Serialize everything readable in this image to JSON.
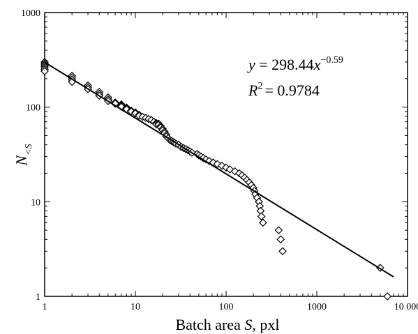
{
  "chart_data": {
    "type": "scatter",
    "title": "",
    "xlabel": {
      "prefix": "Batch area ",
      "var": "S",
      "suffix": ", pxl"
    },
    "ylabel": {
      "var": "N",
      "sub": "<S"
    },
    "x_scale": "log",
    "y_scale": "log",
    "xlim": [
      1,
      10000
    ],
    "ylim": [
      1,
      1000
    ],
    "x_ticks": [
      1,
      10,
      100,
      1000,
      10000
    ],
    "x_tick_labels": [
      "1",
      "10",
      "100",
      "1000",
      "10 000"
    ],
    "y_ticks": [
      1,
      10,
      100,
      1000
    ],
    "y_tick_labels": [
      "1",
      "10",
      "100",
      "1000"
    ],
    "grid": false,
    "marker": "open-diamond",
    "series": [
      {
        "points": [
          [
            1,
            300
          ],
          [
            1,
            290
          ],
          [
            1,
            280
          ],
          [
            1,
            270
          ],
          [
            1,
            260
          ],
          [
            1,
            250
          ],
          [
            1,
            240
          ],
          [
            2,
            215
          ],
          [
            2,
            205
          ],
          [
            2,
            195
          ],
          [
            2,
            185
          ],
          [
            3,
            170
          ],
          [
            3,
            162
          ],
          [
            3,
            155
          ],
          [
            4,
            145
          ],
          [
            4,
            138
          ],
          [
            4,
            132
          ],
          [
            5,
            127
          ],
          [
            5,
            121
          ],
          [
            5,
            116
          ],
          [
            6,
            112
          ],
          [
            6,
            109
          ],
          [
            7,
            107
          ],
          [
            7,
            104
          ],
          [
            7,
            101
          ],
          [
            8,
            99
          ],
          [
            8,
            97
          ],
          [
            8,
            95
          ],
          [
            9,
            92
          ],
          [
            9,
            90
          ],
          [
            10,
            88
          ],
          [
            10,
            86
          ],
          [
            11,
            83
          ],
          [
            11,
            81
          ],
          [
            12,
            79
          ],
          [
            13,
            77
          ],
          [
            14,
            75
          ],
          [
            15,
            73
          ],
          [
            16,
            70
          ],
          [
            17,
            68
          ],
          [
            17,
            66
          ],
          [
            18,
            67
          ],
          [
            18,
            65
          ],
          [
            19,
            63
          ],
          [
            19,
            61
          ],
          [
            20,
            59
          ],
          [
            20,
            57
          ],
          [
            21,
            55
          ],
          [
            21,
            53
          ],
          [
            22,
            51
          ],
          [
            22,
            49
          ],
          [
            23,
            47
          ],
          [
            24,
            45
          ],
          [
            25,
            44
          ],
          [
            26,
            43
          ],
          [
            27,
            42
          ],
          [
            28,
            41
          ],
          [
            30,
            40
          ],
          [
            32,
            38
          ],
          [
            34,
            37
          ],
          [
            36,
            36
          ],
          [
            38,
            35
          ],
          [
            40,
            34
          ],
          [
            42,
            33
          ],
          [
            48,
            32
          ],
          [
            50,
            31
          ],
          [
            53,
            30
          ],
          [
            56,
            29
          ],
          [
            60,
            28
          ],
          [
            65,
            27
          ],
          [
            72,
            26
          ],
          [
            80,
            25
          ],
          [
            90,
            24
          ],
          [
            100,
            23
          ],
          [
            110,
            22
          ],
          [
            125,
            21
          ],
          [
            140,
            20
          ],
          [
            150,
            19
          ],
          [
            160,
            18
          ],
          [
            170,
            17
          ],
          [
            180,
            16
          ],
          [
            190,
            15
          ],
          [
            200,
            14
          ],
          [
            205,
            13
          ],
          [
            210,
            12
          ],
          [
            220,
            11
          ],
          [
            230,
            10
          ],
          [
            235,
            9
          ],
          [
            240,
            8
          ],
          [
            245,
            7
          ],
          [
            255,
            6
          ],
          [
            380,
            5
          ],
          [
            400,
            4
          ],
          [
            420,
            3
          ],
          [
            5000,
            2
          ],
          [
            6000,
            1
          ]
        ]
      }
    ],
    "fit": {
      "type": "power",
      "a": 298.44,
      "b": -0.59,
      "x_range": [
        1,
        7000
      ]
    },
    "annotation": {
      "eq_prefix": "y",
      "eq_middle": " = 298.44",
      "eq_x": "x",
      "eq_exp": "−0.59",
      "r2_var": "R",
      "r2_exp": "2",
      "r2_value": "= 0.9784"
    }
  }
}
